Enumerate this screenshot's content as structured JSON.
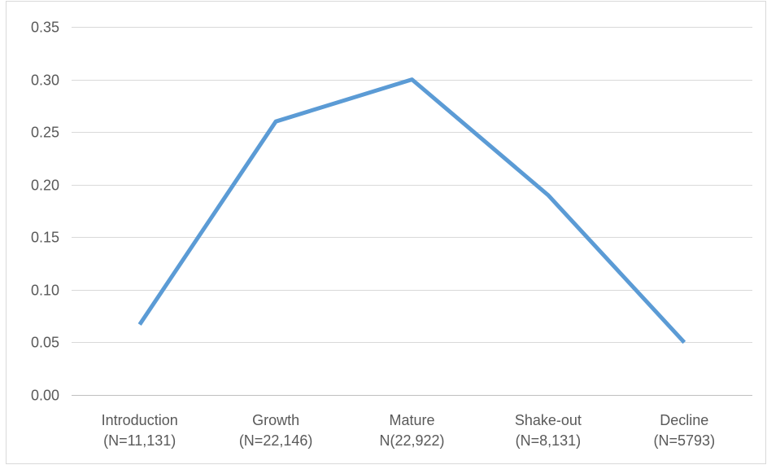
{
  "chart_data": {
    "type": "line",
    "title": "",
    "xlabel": "",
    "ylabel": "",
    "categories": [
      [
        "Introduction",
        "(N=11,131)"
      ],
      [
        "Growth",
        "(N=22,146)"
      ],
      [
        "Mature",
        "N(22,922)"
      ],
      [
        "Shake-out",
        "(N=8,131)"
      ],
      [
        "Decline",
        "(N=5793)"
      ]
    ],
    "series": [
      {
        "values": [
          0.067,
          0.26,
          0.3,
          0.19,
          0.05
        ]
      }
    ],
    "ylim": [
      0,
      0.35
    ],
    "yticks": [
      "0.00",
      "0.05",
      "0.10",
      "0.15",
      "0.20",
      "0.25",
      "0.30",
      "0.35"
    ],
    "grid": true,
    "legend": "none"
  },
  "colors": {
    "series": "#5b9bd5"
  }
}
